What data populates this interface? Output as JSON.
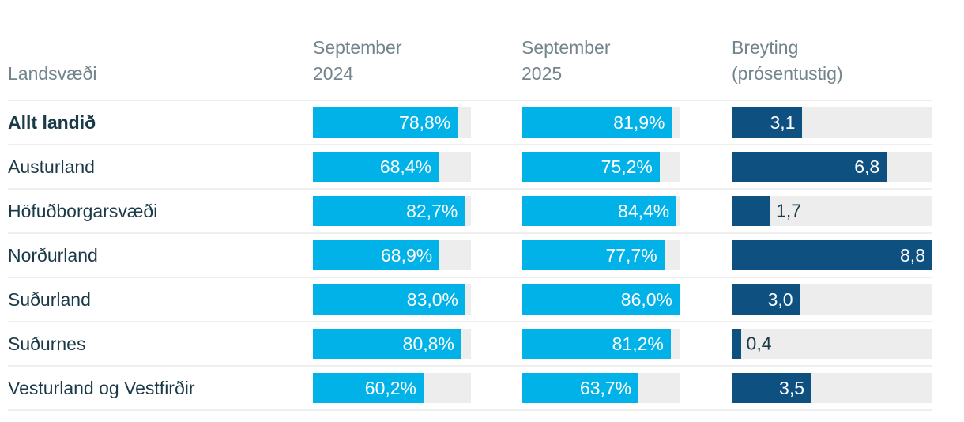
{
  "colors": {
    "bar_percent": "#00b2e8",
    "bar_change": "#0e5080",
    "bar_track": "#ededed",
    "header_text": "#72858c",
    "region_text": "#1b3a47",
    "value_text_inside": "#ffffff",
    "divider": "#efefef",
    "background": "#ffffff"
  },
  "table": {
    "label_header": "Landsvæði",
    "column_headers": [
      {
        "line1": "September",
        "line2": "2024"
      },
      {
        "line1": "September",
        "line2": "2025"
      },
      {
        "line1": "Breyting",
        "line2": "(prósentustig)"
      }
    ],
    "scales": {
      "percent_max": 86.0,
      "change_max": 8.8
    },
    "rows": [
      {
        "region": "Allt landið",
        "bold": true,
        "sep2024": {
          "display": "78,8%",
          "value": 78.8
        },
        "sep2025": {
          "display": "81,9%",
          "value": 81.9
        },
        "change": {
          "display": "3,1",
          "value": 3.1
        }
      },
      {
        "region": "Austurland",
        "bold": false,
        "sep2024": {
          "display": "68,4%",
          "value": 68.4
        },
        "sep2025": {
          "display": "75,2%",
          "value": 75.2
        },
        "change": {
          "display": "6,8",
          "value": 6.8
        }
      },
      {
        "region": "Höfuðborgarsvæði",
        "bold": false,
        "sep2024": {
          "display": "82,7%",
          "value": 82.7
        },
        "sep2025": {
          "display": "84,4%",
          "value": 84.4
        },
        "change": {
          "display": "1,7",
          "value": 1.7
        }
      },
      {
        "region": "Norðurland",
        "bold": false,
        "sep2024": {
          "display": "68,9%",
          "value": 68.9
        },
        "sep2025": {
          "display": "77,7%",
          "value": 77.7
        },
        "change": {
          "display": "8,8",
          "value": 8.8
        }
      },
      {
        "region": "Suðurland",
        "bold": false,
        "sep2024": {
          "display": "83,0%",
          "value": 83.0
        },
        "sep2025": {
          "display": "86,0%",
          "value": 86.0
        },
        "change": {
          "display": "3,0",
          "value": 3.0
        }
      },
      {
        "region": "Suðurnes",
        "bold": false,
        "sep2024": {
          "display": "80,8%",
          "value": 80.8
        },
        "sep2025": {
          "display": "81,2%",
          "value": 81.2
        },
        "change": {
          "display": "0,4",
          "value": 0.4
        }
      },
      {
        "region": "Vesturland og Vestfirðir",
        "bold": false,
        "sep2024": {
          "display": "60,2%",
          "value": 60.2
        },
        "sep2025": {
          "display": "63,7%",
          "value": 63.7
        },
        "change": {
          "display": "3,5",
          "value": 3.5
        }
      }
    ]
  },
  "chart_data": {
    "type": "bar",
    "orientation": "horizontal",
    "title": "",
    "xlabel": "Landsvæði",
    "categories": [
      "Allt landið",
      "Austurland",
      "Höfuðborgarsvæði",
      "Norðurland",
      "Suðurland",
      "Suðurnes",
      "Vesturland og Vestfirðir"
    ],
    "series": [
      {
        "name": "September 2024",
        "values": [
          78.8,
          68.4,
          82.7,
          68.9,
          83.0,
          80.8,
          60.2
        ],
        "unit": "%",
        "color": "#00b2e8",
        "axis_range": [
          0,
          86
        ]
      },
      {
        "name": "September 2025",
        "values": [
          81.9,
          75.2,
          84.4,
          77.7,
          86.0,
          81.2,
          63.7
        ],
        "unit": "%",
        "color": "#00b2e8",
        "axis_range": [
          0,
          86
        ]
      },
      {
        "name": "Breyting (prósentustig)",
        "values": [
          3.1,
          6.8,
          1.7,
          8.8,
          3.0,
          0.4,
          3.5
        ],
        "unit": "percentage-points",
        "color": "#0e5080",
        "axis_range": [
          0,
          8.8
        ]
      }
    ],
    "value_labels_shown": true,
    "decimal_separator": ",",
    "grid": false,
    "legend_position": "column-headers"
  }
}
